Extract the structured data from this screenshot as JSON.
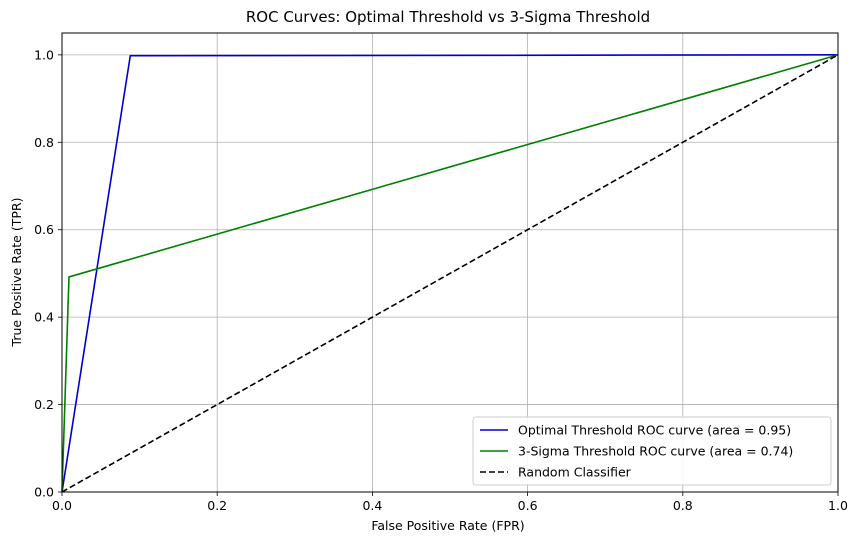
{
  "chart_data": {
    "type": "line",
    "title": "ROC Curves: Optimal Threshold vs 3-Sigma Threshold",
    "xlabel": "False Positive Rate (FPR)",
    "ylabel": "True Positive Rate (TPR)",
    "xlim": [
      0.0,
      1.0
    ],
    "ylim": [
      0.0,
      1.05
    ],
    "xticks": [
      0.0,
      0.2,
      0.4,
      0.6,
      0.8,
      1.0
    ],
    "yticks": [
      0.0,
      0.2,
      0.4,
      0.6,
      0.8,
      1.0
    ],
    "xtick_labels": [
      "0.0",
      "0.2",
      "0.4",
      "0.6",
      "0.8",
      "1.0"
    ],
    "ytick_labels": [
      "0.0",
      "0.2",
      "0.4",
      "0.6",
      "0.8",
      "1.0"
    ],
    "grid": true,
    "legend_position": "bottom-right",
    "series": [
      {
        "name": "Optimal Threshold ROC curve (area = 0.95)",
        "color": "#0000cc",
        "dash": "solid",
        "x": [
          0.0,
          0.088,
          1.0
        ],
        "y": [
          0.0,
          0.998,
          1.0
        ]
      },
      {
        "name": "3-Sigma Threshold ROC curve (area = 0.74)",
        "color": "#008000",
        "dash": "solid",
        "x": [
          0.0,
          0.009,
          1.0
        ],
        "y": [
          0.0,
          0.492,
          1.0
        ]
      },
      {
        "name": "Random Classifier",
        "color": "#000000",
        "dash": "dashed",
        "x": [
          0.0,
          1.0
        ],
        "y": [
          0.0,
          1.0
        ]
      }
    ]
  }
}
